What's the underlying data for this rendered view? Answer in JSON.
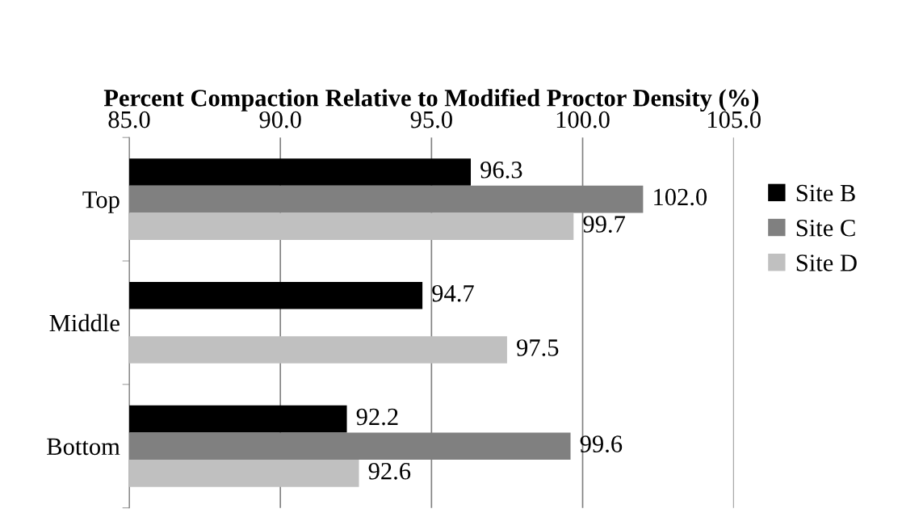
{
  "chart_data": {
    "type": "bar",
    "orientation": "horizontal",
    "xlabel": "Percent Compaction Relative to Modified Proctor Density (%)",
    "categories": [
      "Top",
      "Middle",
      "Bottom"
    ],
    "series": [
      {
        "name": "Site B",
        "color": "#000000",
        "values": [
          96.3,
          94.7,
          92.2
        ]
      },
      {
        "name": "Site C",
        "color": "#808080",
        "values": [
          102.0,
          null,
          99.6
        ]
      },
      {
        "name": "Site D",
        "color": "#c0c0c0",
        "values": [
          99.7,
          97.5,
          92.6
        ]
      }
    ],
    "xlim": [
      85,
      105
    ],
    "xticks": [
      {
        "value": 85,
        "label": "85.0"
      },
      {
        "value": 90,
        "label": "90.0"
      },
      {
        "value": 95,
        "label": "95.0"
      },
      {
        "value": 100,
        "label": "100.0"
      },
      {
        "value": 105,
        "label": "105.0"
      }
    ],
    "value_labels": [
      [
        "96.3",
        "94.7",
        "92.2"
      ],
      [
        "102.0",
        null,
        "99.6"
      ],
      [
        "99.7",
        "97.5",
        "92.6"
      ]
    ],
    "grid": "x",
    "legend": "right"
  }
}
